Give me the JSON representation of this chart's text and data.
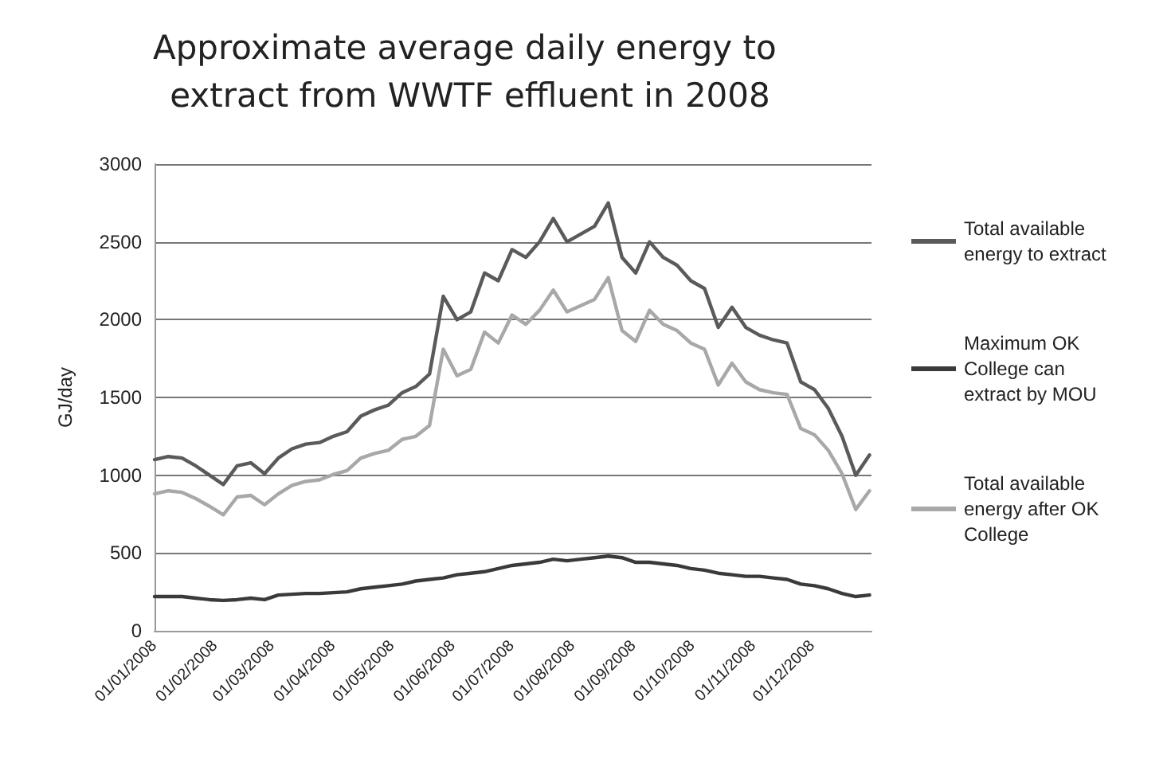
{
  "chart_data": {
    "type": "line",
    "title": "Approximate average daily energy to extract from WWTF effluent in 2008",
    "ylabel": "GJ/day",
    "x": [
      "2008-01-01",
      "2008-01-08",
      "2008-01-15",
      "2008-01-22",
      "2008-01-29",
      "2008-02-05",
      "2008-02-12",
      "2008-02-19",
      "2008-02-26",
      "2008-03-04",
      "2008-03-11",
      "2008-03-18",
      "2008-03-25",
      "2008-04-01",
      "2008-04-08",
      "2008-04-15",
      "2008-04-22",
      "2008-04-29",
      "2008-05-06",
      "2008-05-13",
      "2008-05-20",
      "2008-05-27",
      "2008-06-03",
      "2008-06-10",
      "2008-06-17",
      "2008-06-24",
      "2008-07-01",
      "2008-07-08",
      "2008-07-15",
      "2008-07-22",
      "2008-07-29",
      "2008-08-05",
      "2008-08-12",
      "2008-08-19",
      "2008-08-26",
      "2008-09-02",
      "2008-09-09",
      "2008-09-16",
      "2008-09-23",
      "2008-09-30",
      "2008-10-07",
      "2008-10-14",
      "2008-10-21",
      "2008-10-28",
      "2008-11-04",
      "2008-11-11",
      "2008-11-18",
      "2008-11-25",
      "2008-12-02",
      "2008-12-09",
      "2008-12-16",
      "2008-12-23",
      "2008-12-30"
    ],
    "series": [
      {
        "name": "Total available energy to extract",
        "color": "#5a5a5a",
        "values": [
          1100,
          1120,
          1110,
          1060,
          1000,
          940,
          1060,
          1080,
          1010,
          1110,
          1170,
          1200,
          1210,
          1250,
          1280,
          1380,
          1420,
          1450,
          1530,
          1570,
          1650,
          2150,
          2000,
          2050,
          2300,
          2250,
          2450,
          2400,
          2500,
          2650,
          2500,
          2550,
          2600,
          2750,
          2400,
          2300,
          2500,
          2400,
          2350,
          2250,
          2200,
          1950,
          2080,
          1950,
          1900,
          1870,
          1850,
          1600,
          1550,
          1430,
          1250,
          1000,
          1130
        ]
      },
      {
        "name": "Maximum OK College can extract by MOU",
        "color": "#3a3a3a",
        "values": [
          220,
          220,
          220,
          210,
          200,
          195,
          200,
          210,
          200,
          230,
          235,
          240,
          240,
          245,
          250,
          270,
          280,
          290,
          300,
          320,
          330,
          340,
          360,
          370,
          380,
          400,
          420,
          430,
          440,
          460,
          450,
          460,
          470,
          480,
          470,
          440,
          440,
          430,
          420,
          400,
          390,
          370,
          360,
          350,
          350,
          340,
          330,
          300,
          290,
          270,
          240,
          220,
          230
        ]
      },
      {
        "name": "Total available energy after OK College",
        "color": "#a8a8a8",
        "values": [
          880,
          900,
          890,
          850,
          800,
          745,
          860,
          870,
          810,
          880,
          935,
          960,
          970,
          1005,
          1030,
          1110,
          1140,
          1160,
          1230,
          1250,
          1320,
          1810,
          1640,
          1680,
          1920,
          1850,
          2030,
          1970,
          2060,
          2190,
          2050,
          2090,
          2130,
          2270,
          1930,
          1860,
          2060,
          1970,
          1930,
          1850,
          1810,
          1580,
          1720,
          1600,
          1550,
          1530,
          1520,
          1300,
          1260,
          1160,
          1010,
          780,
          900
        ]
      }
    ],
    "xlim": [
      "2008-01-01",
      "2008-12-31"
    ],
    "xticks": [
      {
        "value": "2008-01-01",
        "label": "01/01/2008"
      },
      {
        "value": "2008-02-01",
        "label": "01/02/2008"
      },
      {
        "value": "2008-03-01",
        "label": "01/03/2008"
      },
      {
        "value": "2008-04-01",
        "label": "01/04/2008"
      },
      {
        "value": "2008-05-01",
        "label": "01/05/2008"
      },
      {
        "value": "2008-06-01",
        "label": "01/06/2008"
      },
      {
        "value": "2008-07-01",
        "label": "01/07/2008"
      },
      {
        "value": "2008-08-01",
        "label": "01/08/2008"
      },
      {
        "value": "2008-09-01",
        "label": "01/09/2008"
      },
      {
        "value": "2008-10-01",
        "label": "01/10/2008"
      },
      {
        "value": "2008-11-01",
        "label": "01/11/2008"
      },
      {
        "value": "2008-12-01",
        "label": "01/12/2008"
      }
    ],
    "ylim": [
      0,
      3000
    ],
    "yticks": [
      0,
      500,
      1000,
      1500,
      2000,
      2500,
      3000
    ],
    "grid": "y",
    "legend": "right",
    "marker": "none",
    "line_style": "solid"
  }
}
